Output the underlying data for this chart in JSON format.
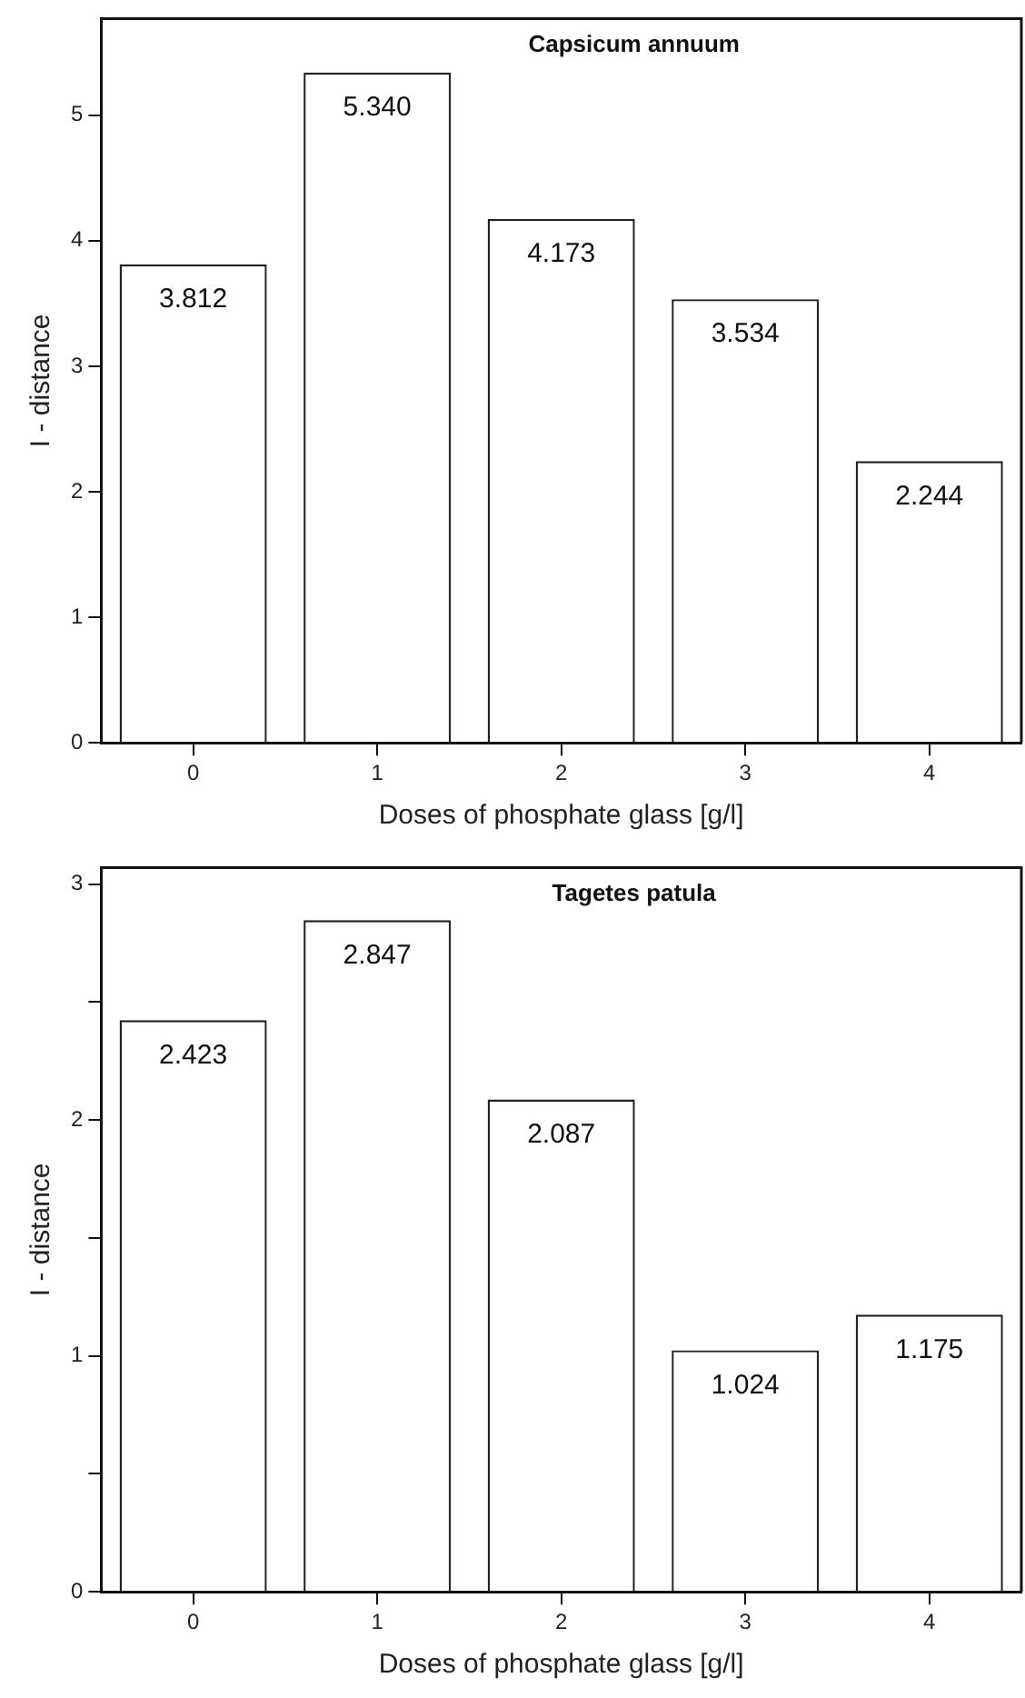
{
  "chart_data": [
    {
      "type": "bar",
      "title": "Capsicum annuum",
      "xlabel": "Doses of phosphate glass [g/l]",
      "ylabel": "I - distance",
      "categories": [
        "0",
        "1",
        "2",
        "3",
        "4"
      ],
      "values": [
        3.812,
        5.34,
        4.173,
        3.534,
        2.244
      ],
      "value_labels": [
        "3.812",
        "5.340",
        "4.173",
        "3.534",
        "2.244"
      ],
      "color": "#ffffff",
      "ylim": [
        0,
        5.77
      ],
      "yticks": [
        0,
        1,
        2,
        3,
        4,
        5
      ]
    },
    {
      "type": "bar",
      "title": "Tagetes patula",
      "xlabel": "Doses of phosphate glass [g/l]",
      "ylabel": "I - distance",
      "categories": [
        "0",
        "1",
        "2",
        "3",
        "4"
      ],
      "values": [
        2.423,
        2.847,
        2.087,
        1.024,
        1.175
      ],
      "value_labels": [
        "2.423",
        "2.847",
        "2.087",
        "1.024",
        "1.175"
      ],
      "color": "#ffffff",
      "ylim": [
        0,
        3.07
      ],
      "yticks": [
        0,
        {
          "value": 0.5,
          "label": null
        },
        1,
        {
          "value": 1.5,
          "label": null
        },
        2,
        {
          "value": 2.5,
          "label": null
        },
        3
      ]
    }
  ]
}
